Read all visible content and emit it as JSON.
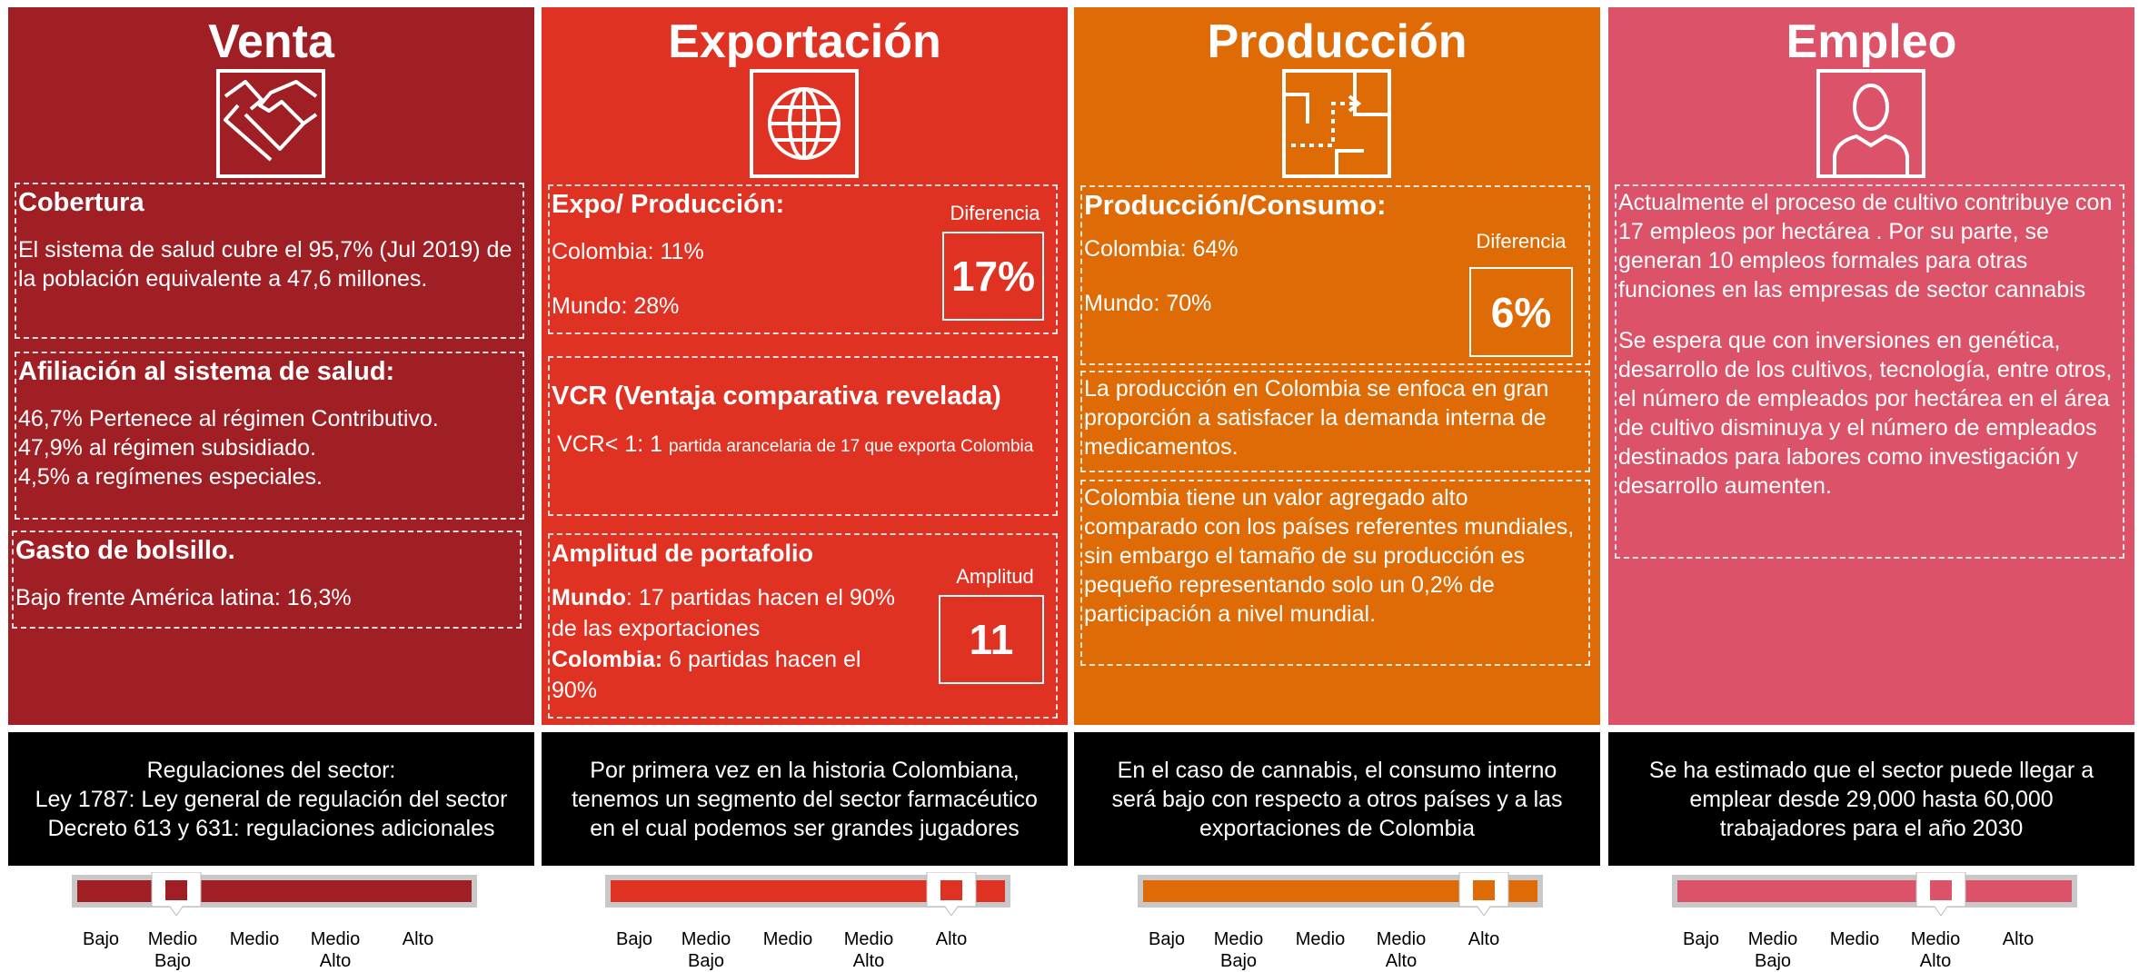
{
  "scale_labels": [
    "Bajo",
    "Medio Bajo",
    "Medio",
    "Medio Alto",
    "Alto"
  ],
  "columns": [
    {
      "title": "Venta",
      "sections": [
        {
          "heading": "Cobertura",
          "text": "El sistema de salud cubre el 95,7% (Jul 2019) de la población equivalente a 47,6 millones."
        },
        {
          "heading": "Afiliación al sistema de salud:",
          "lines": [
            "46,7% Pertenece al régimen Contributivo.",
            "47,9% al régimen subsidiado.",
            "4,5% a regímenes especiales."
          ]
        },
        {
          "heading": "Gasto de bolsillo.",
          "text": "Bajo frente América latina: 16,3%"
        }
      ],
      "footer": [
        "Regulaciones del sector:",
        "Ley 1787: Ley general de regulación del sector",
        "Decreto 613 y 631: regulaciones adicionales"
      ]
    },
    {
      "title": "Exportación",
      "sections": [
        {
          "heading": "Expo/ Producción:",
          "lines": [
            "Colombia: 11%",
            "Mundo: 28%"
          ],
          "box_label": "Diferencia",
          "box_value": "17%"
        },
        {
          "heading": "VCR (Ventaja comparativa revelada)",
          "text": "VCR< 1: 1",
          "small": "partida arancelaria de 17 que exporta Colombia"
        },
        {
          "heading": "Amplitud de portafolio",
          "lines": [
            [
              "Mundo",
              ": 17 partidas hacen el 90% de las exportaciones"
            ],
            [
              "Colombia:",
              " 6 partidas hacen el 90%"
            ]
          ],
          "box_label": "Amplitud",
          "box_value": "11"
        }
      ],
      "footer": [
        "Por primera vez en la historia Colombiana, tenemos un segmento del sector farmacéutico en el cual podemos ser grandes jugadores"
      ]
    },
    {
      "title": "Producción",
      "sections": [
        {
          "heading": "Producción/Consumo:",
          "lines": [
            "Colombia: 64%",
            "Mundo: 70%"
          ],
          "box_label": "Diferencia",
          "box_value": "6%"
        },
        {
          "text": "La producción en Colombia se enfoca en gran proporción a satisfacer la demanda interna de medicamentos."
        },
        {
          "text": "Colombia tiene un valor agregado alto comparado con los países referentes mundiales, sin embargo el tamaño de su producción es pequeño representando solo un 0,2% de participación a nivel mundial."
        }
      ],
      "footer": [
        "En el caso de cannabis, el consumo interno será bajo con respecto a otros países y a las exportaciones de Colombia"
      ]
    },
    {
      "title": "Empleo",
      "sections": [
        {
          "paragraphs": [
            "Actualmente el proceso de cultivo contribuye con 17 empleos por hectárea . Por su parte, se generan 10 empleos formales para otras funciones en las empresas de  sector cannabis",
            "Se espera que con inversiones en genética, desarrollo de los cultivos, tecnología, entre otros, el número de empleados por hectárea en el área de cultivo disminuya y el número de empleados destinados para labores como investigación y desarrollo aumenten."
          ]
        }
      ],
      "footer": [
        "Se ha estimado que el sector puede llegar a emplear desde 29,000 hasta 60,000 trabajadores para el año 2030"
      ]
    }
  ]
}
